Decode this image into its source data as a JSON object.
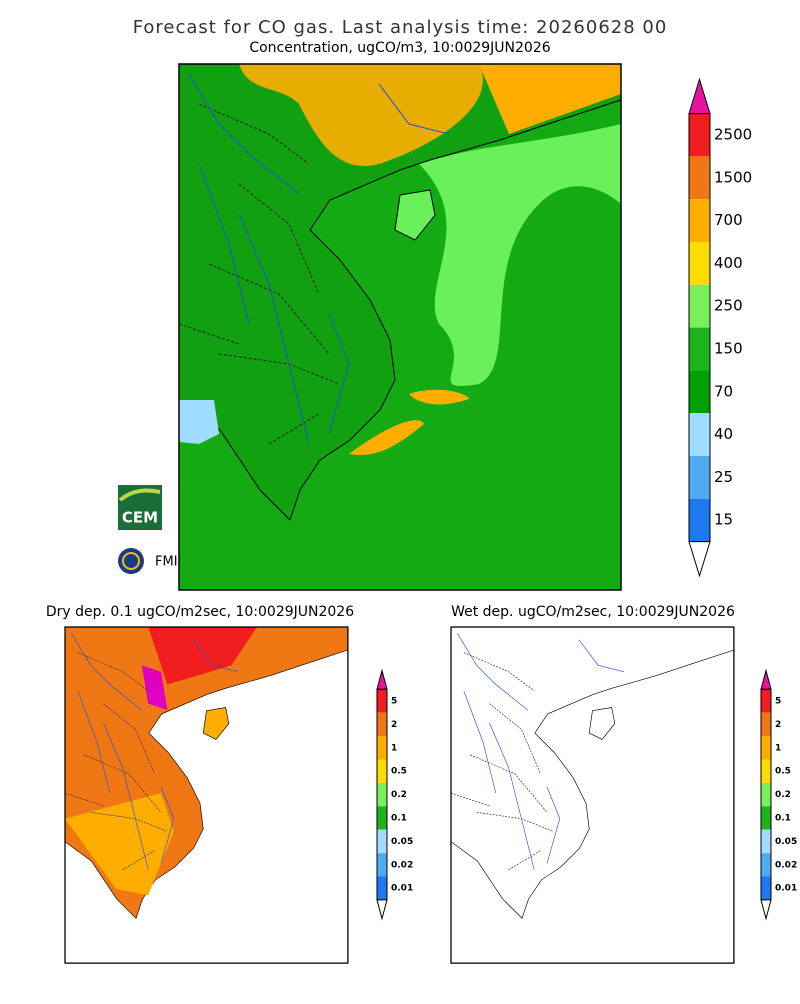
{
  "header": {
    "title": "Forecast for CO gas. Last analysis time: 20260628 00"
  },
  "main": {
    "subtitle": "Concentration, ugCO/m3, 10:0029JUN2026",
    "colorbar": {
      "labels": [
        "2500",
        "1500",
        "700",
        "400",
        "250",
        "150",
        "70",
        "40",
        "25",
        "15"
      ],
      "colors": [
        "#f01e1e",
        "#f07814",
        "#ffae00",
        "#ffdc00",
        "#78f05a",
        "#1eb41e",
        "#00a000",
        "#a0dcff",
        "#50aaf0",
        "#1e78f0"
      ]
    }
  },
  "dry": {
    "subtitle": "Dry dep. 0.1 ugCO/m2sec, 10:0029JUN2026",
    "colorbar": {
      "labels": [
        "5",
        "2",
        "1",
        "0.5",
        "0.2",
        "0.1",
        "0.05",
        "0.02",
        "0.01"
      ],
      "colors": [
        "#f01e1e",
        "#f07814",
        "#ffae00",
        "#ffdc00",
        "#78f05a",
        "#1eb41e",
        "#a0dcff",
        "#50aaf0",
        "#1e78f0"
      ]
    }
  },
  "wet": {
    "subtitle": "Wet dep. ugCO/m2sec, 10:0029JUN2026",
    "colorbar": {
      "labels": [
        "5",
        "2",
        "1",
        "0.5",
        "0.2",
        "0.1",
        "0.05",
        "0.02",
        "0.01"
      ],
      "colors": [
        "#f01e1e",
        "#f07814",
        "#ffae00",
        "#ffdc00",
        "#78f05a",
        "#1eb41e",
        "#a0dcff",
        "#50aaf0",
        "#1e78f0"
      ]
    }
  },
  "logos": {
    "cem": "CEM",
    "fmi": "FMI"
  }
}
